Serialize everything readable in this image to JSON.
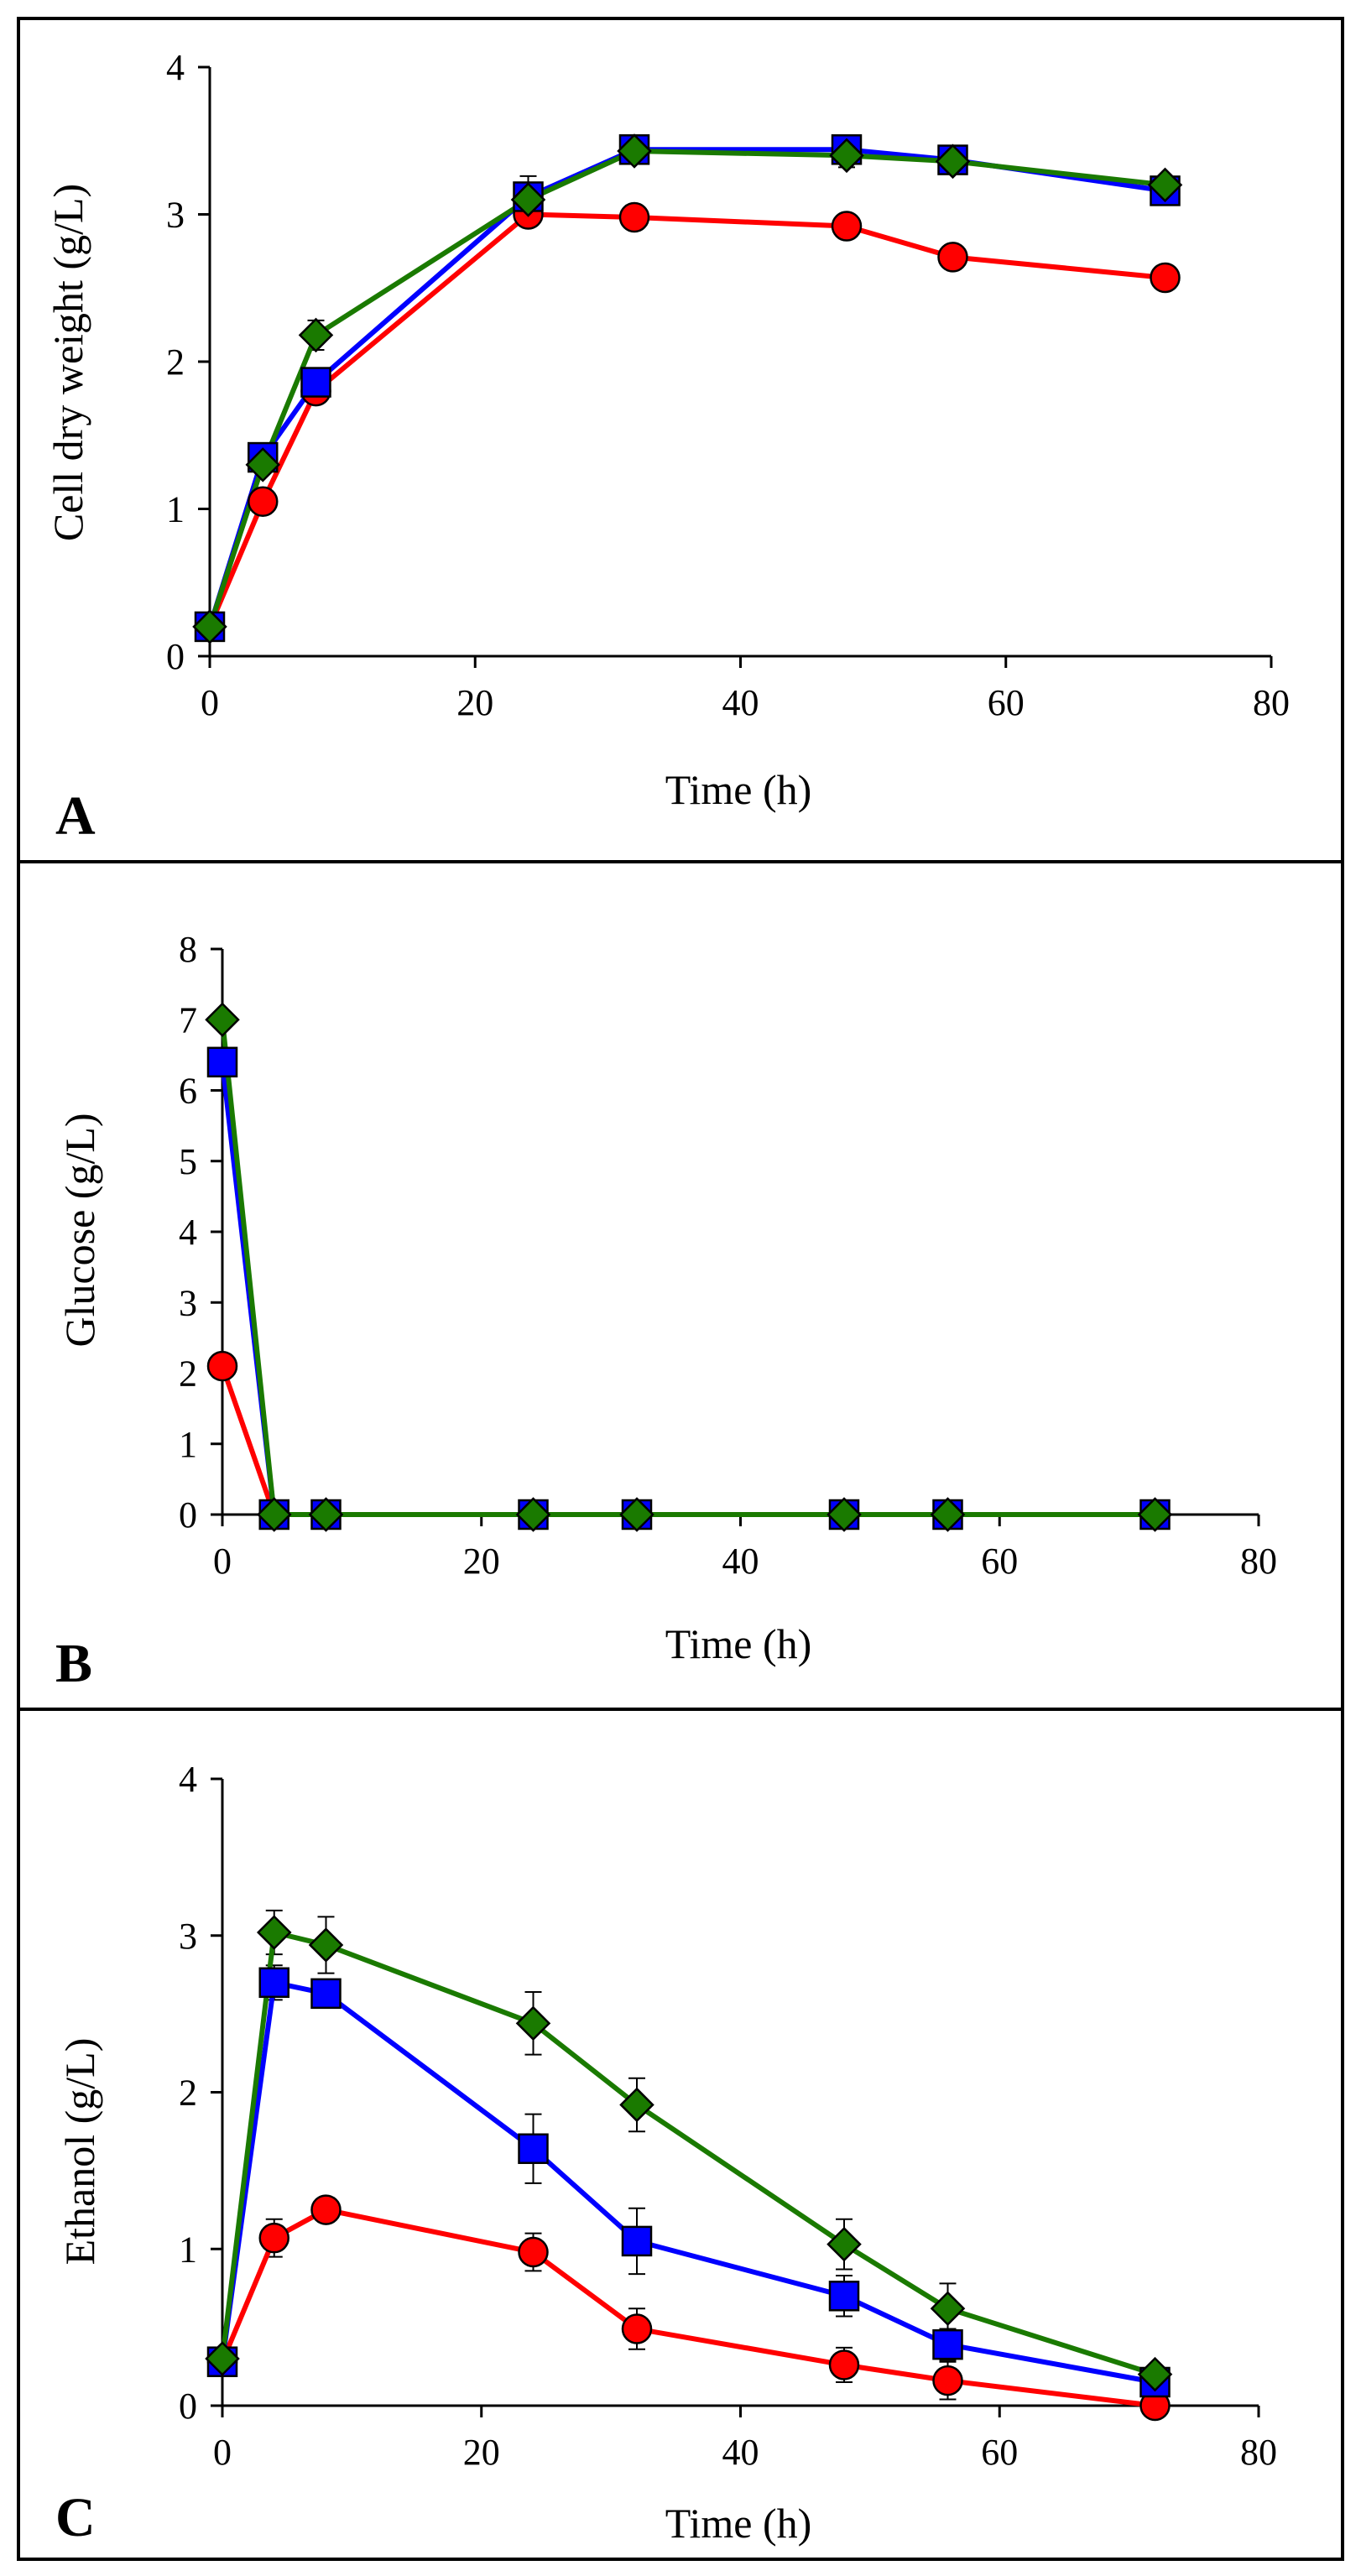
{
  "chart_data": [
    {
      "type": "line",
      "panel_label": "A",
      "title": "",
      "xlabel": "Time (h)",
      "ylabel": "Cell dry weight (g/L)",
      "xlim": [
        0,
        80
      ],
      "ylim": [
        0,
        4
      ],
      "xticks": [
        "0",
        "20",
        "40",
        "60",
        "80"
      ],
      "yticks": [
        "0",
        "1",
        "2",
        "3",
        "4"
      ],
      "grid": false,
      "legend": "none",
      "series": [
        {
          "name": "red circles",
          "color": "#ff0000",
          "marker": "circle",
          "x": [
            0,
            4,
            8,
            24,
            32,
            48,
            56,
            72
          ],
          "y": [
            0.2,
            1.05,
            1.8,
            3.0,
            2.98,
            2.92,
            2.71,
            2.57
          ],
          "err": [
            0,
            0,
            0.05,
            0,
            0,
            0,
            0,
            0
          ]
        },
        {
          "name": "blue squares",
          "color": "#0000ff",
          "marker": "square",
          "x": [
            0,
            4,
            8,
            24,
            32,
            48,
            56,
            72
          ],
          "y": [
            0.2,
            1.35,
            1.86,
            3.12,
            3.44,
            3.44,
            3.37,
            3.16
          ],
          "err": [
            0,
            0,
            0,
            0,
            0,
            0,
            0,
            0
          ]
        },
        {
          "name": "green diamonds",
          "color": "#1a7a00",
          "marker": "diamond",
          "x": [
            0,
            4,
            8,
            24,
            32,
            48,
            56,
            72
          ],
          "y": [
            0.2,
            1.3,
            2.18,
            3.1,
            3.43,
            3.4,
            3.36,
            3.2
          ],
          "err": [
            0,
            0,
            0.1,
            0.16,
            0.08,
            0.08,
            0.05,
            0
          ]
        }
      ]
    },
    {
      "type": "line",
      "panel_label": "B",
      "title": "",
      "xlabel": "Time (h)",
      "ylabel": "Glucose (g/L)",
      "xlim": [
        0,
        80
      ],
      "ylim": [
        0,
        8
      ],
      "xticks": [
        "0",
        "20",
        "40",
        "60",
        "80"
      ],
      "yticks": [
        "0",
        "1",
        "2",
        "3",
        "4",
        "5",
        "6",
        "7",
        "8"
      ],
      "grid": false,
      "legend": "none",
      "series": [
        {
          "name": "red circles",
          "color": "#ff0000",
          "marker": "circle",
          "x": [
            0,
            4,
            8,
            24,
            32,
            48,
            56,
            72
          ],
          "y": [
            2.1,
            0,
            0,
            0,
            0,
            0,
            0,
            0
          ],
          "err": [
            0,
            0,
            0,
            0,
            0,
            0,
            0,
            0
          ]
        },
        {
          "name": "blue squares",
          "color": "#0000ff",
          "marker": "square",
          "x": [
            0,
            4,
            8,
            24,
            32,
            48,
            56,
            72
          ],
          "y": [
            6.4,
            0,
            0,
            0,
            0,
            0,
            0,
            0
          ],
          "err": [
            0,
            0,
            0,
            0,
            0,
            0,
            0,
            0
          ]
        },
        {
          "name": "green diamonds",
          "color": "#1a7a00",
          "marker": "diamond",
          "x": [
            0,
            4,
            8,
            24,
            32,
            48,
            56,
            72
          ],
          "y": [
            7.0,
            0,
            0,
            0,
            0,
            0,
            0,
            0
          ],
          "err": [
            0,
            0,
            0,
            0,
            0,
            0,
            0,
            0
          ]
        }
      ]
    },
    {
      "type": "line",
      "panel_label": "C",
      "title": "",
      "xlabel": "Time (h)",
      "ylabel": "Ethanol (g/L)",
      "xlim": [
        0,
        80
      ],
      "ylim": [
        0,
        4
      ],
      "xticks": [
        "0",
        "20",
        "40",
        "60",
        "80"
      ],
      "yticks": [
        "0",
        "1",
        "2",
        "3",
        "4"
      ],
      "grid": false,
      "legend": "none",
      "series": [
        {
          "name": "red circles",
          "color": "#ff0000",
          "marker": "circle",
          "x": [
            0,
            4,
            8,
            24,
            32,
            48,
            56,
            72
          ],
          "y": [
            0.28,
            1.07,
            1.25,
            0.98,
            0.49,
            0.26,
            0.16,
            0.0
          ],
          "err": [
            0,
            0.12,
            0,
            0.12,
            0.13,
            0.11,
            0.12,
            0
          ]
        },
        {
          "name": "blue squares",
          "color": "#0000ff",
          "marker": "square",
          "x": [
            0,
            4,
            8,
            24,
            32,
            48,
            56,
            72
          ],
          "y": [
            0.28,
            2.7,
            2.63,
            1.64,
            1.05,
            0.7,
            0.39,
            0.15
          ],
          "err": [
            0,
            0.11,
            0.06,
            0.22,
            0.21,
            0.13,
            0.1,
            0
          ]
        },
        {
          "name": "green diamonds",
          "color": "#1a7a00",
          "marker": "diamond",
          "x": [
            0,
            4,
            8,
            24,
            32,
            48,
            56,
            72
          ],
          "y": [
            0.3,
            3.02,
            2.94,
            2.44,
            1.92,
            1.03,
            0.62,
            0.2
          ],
          "err": [
            0,
            0.14,
            0.18,
            0.2,
            0.17,
            0.16,
            0.16,
            0
          ]
        }
      ]
    }
  ]
}
